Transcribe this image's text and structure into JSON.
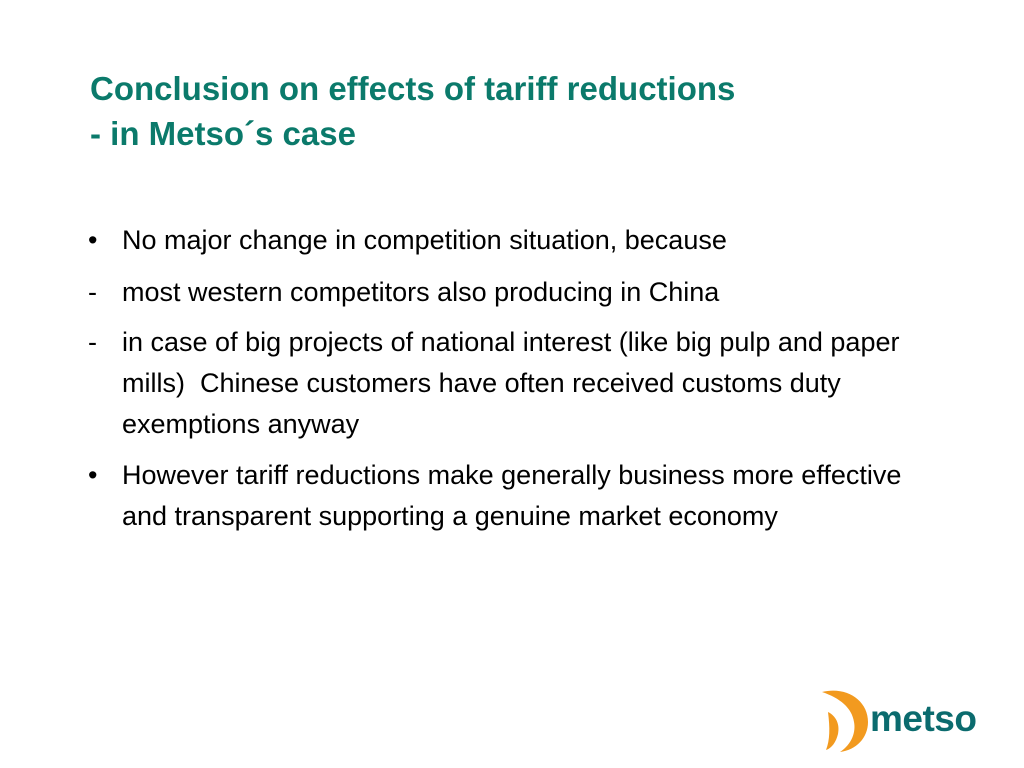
{
  "title": {
    "lines": [
      "Conclusion on effects of tariff reductions",
      "- in Metso´s case"
    ]
  },
  "bullets": [
    {
      "marker": "•",
      "text": "No major change in competition situation, because"
    },
    {
      "marker": "-",
      "text": "most western competitors also producing in China"
    },
    {
      "marker": "-",
      "text": "in case of big projects of national interest (like big pulp and paper mills)  Chinese customers have often received customs duty exemptions anyway"
    },
    {
      "marker": "•",
      "text": "However tariff reductions make generally business more effective and transparent supporting a genuine market economy"
    }
  ],
  "logo": {
    "text": "metso"
  }
}
